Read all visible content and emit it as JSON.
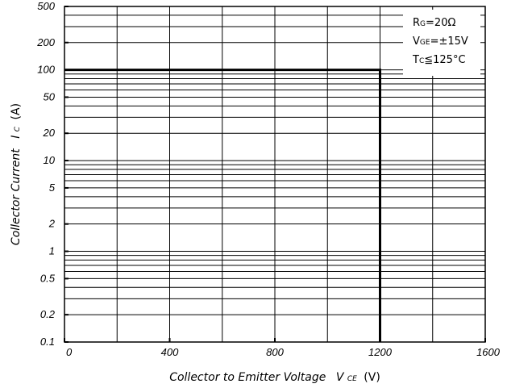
{
  "chart_data": {
    "type": "line",
    "title": "",
    "xlabel": {
      "main": "Collector to Emitter Voltage",
      "symbol": "V",
      "subscript": "CE",
      "unit": "(V)"
    },
    "ylabel": {
      "main": "Collector Current",
      "symbol": "I",
      "subscript": "C",
      "unit": "(A)"
    },
    "xlim": [
      0,
      1600
    ],
    "ylim": [
      0.1,
      500
    ],
    "yscale": "log",
    "grid": true,
    "x_ticks": [
      {
        "value": 0,
        "label": "0"
      },
      {
        "value": 400,
        "label": "400"
      },
      {
        "value": 800,
        "label": "800"
      },
      {
        "value": 1200,
        "label": "1200"
      },
      {
        "value": 1600,
        "label": "1600"
      }
    ],
    "x_gridlines": [
      200,
      400,
      600,
      800,
      1000,
      1200,
      1400
    ],
    "y_ticks": [
      {
        "value": 500,
        "label": "500"
      },
      {
        "value": 200,
        "label": "200"
      },
      {
        "value": 100,
        "label": "100"
      },
      {
        "value": 50,
        "label": "50"
      },
      {
        "value": 20,
        "label": "20"
      },
      {
        "value": 10,
        "label": "10"
      },
      {
        "value": 5,
        "label": "5"
      },
      {
        "value": 2,
        "label": "2"
      },
      {
        "value": 1,
        "label": "1"
      },
      {
        "value": 0.5,
        "label": "0.5"
      },
      {
        "value": 0.2,
        "label": "0.2"
      },
      {
        "value": 0.1,
        "label": "0.1"
      }
    ],
    "y_gridlines": [
      0.2,
      0.3,
      0.4,
      0.5,
      0.6,
      0.7,
      0.8,
      0.9,
      1,
      2,
      3,
      4,
      5,
      6,
      7,
      8,
      9,
      10,
      20,
      30,
      40,
      50,
      60,
      70,
      80,
      90,
      100,
      200,
      300,
      400
    ],
    "series": [
      {
        "x": [
          0,
          1200,
          1200
        ],
        "y": [
          100,
          100,
          0.1
        ],
        "color": "#000000"
      }
    ],
    "annotations": [
      {
        "main": "R",
        "sub": "G",
        "rest": "=20Ω"
      },
      {
        "main": "V",
        "sub": "GE",
        "rest": "=±15V"
      },
      {
        "main": "T",
        "sub": "C",
        "rest": "≦125°C"
      }
    ]
  }
}
